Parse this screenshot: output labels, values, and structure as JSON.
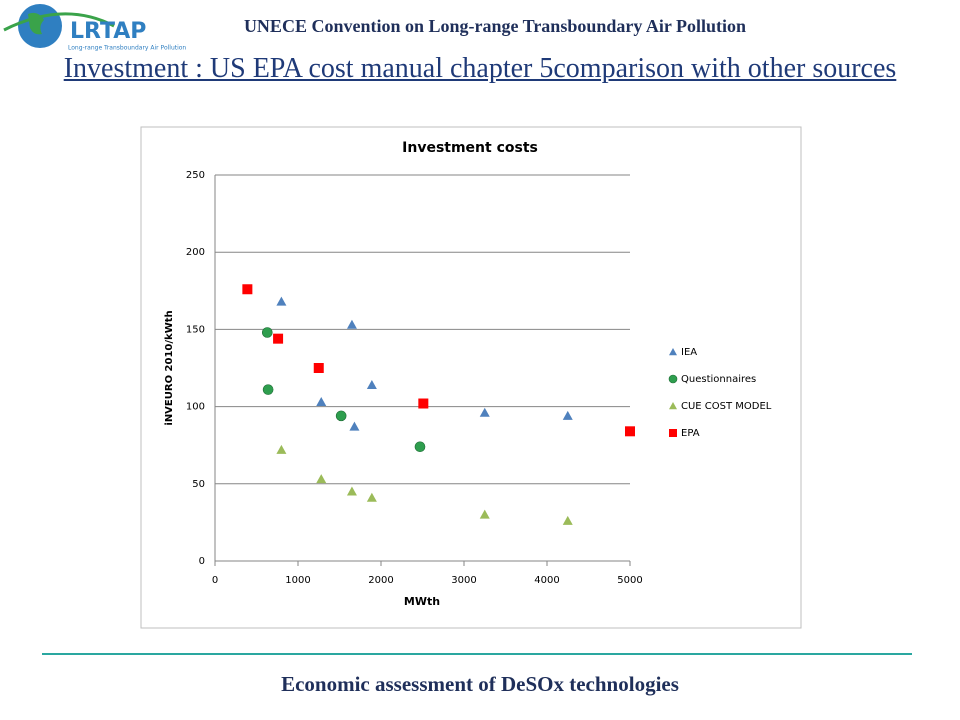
{
  "header": {
    "logo_text": "LRTAP",
    "logo_subtext": "Long-range Transboundary Air Pollution",
    "organization": "UNECE Convention on Long-range Transboundary Air Pollution",
    "title": "Investment : US EPA cost manual chapter 5comparison with other sources"
  },
  "footer": {
    "text": "Economic assessment of DeSOx technologies"
  },
  "chart_data": {
    "type": "scatter",
    "title": "Investment costs",
    "x_label": "MWth",
    "y_label": "iNVEURO 2010/kWth",
    "xlim": [
      0,
      5000
    ],
    "xticks": [
      0,
      1000,
      2000,
      3000,
      4000,
      5000
    ],
    "ylim": [
      0,
      250
    ],
    "yticks": [
      0,
      50,
      100,
      150,
      200,
      250
    ],
    "grid": true,
    "legend": "right",
    "series": [
      {
        "name": "IEA",
        "color": "#4f81bd",
        "marker": "triangle",
        "x": [
          800,
          1650,
          1890,
          1280,
          1680,
          3250,
          4250
        ],
        "values": [
          168,
          153,
          114,
          103,
          87,
          96,
          94
        ]
      },
      {
        "name": "Questionnaires",
        "color": "#2e9e4e",
        "marker": "circle",
        "x": [
          630,
          640,
          1520,
          2470
        ],
        "values": [
          148,
          111,
          94,
          74
        ]
      },
      {
        "name": "CUE COST MODEL",
        "color": "#9bbb59",
        "marker": "triangle",
        "x": [
          800,
          1280,
          1650,
          1890,
          3250,
          4250
        ],
        "values": [
          72,
          53,
          45,
          41,
          30,
          26
        ]
      },
      {
        "name": "EPA",
        "color": "#ff0000",
        "marker": "square",
        "x": [
          390,
          760,
          1250,
          2510,
          5000
        ],
        "values": [
          176,
          144,
          125,
          102,
          84
        ]
      }
    ]
  }
}
